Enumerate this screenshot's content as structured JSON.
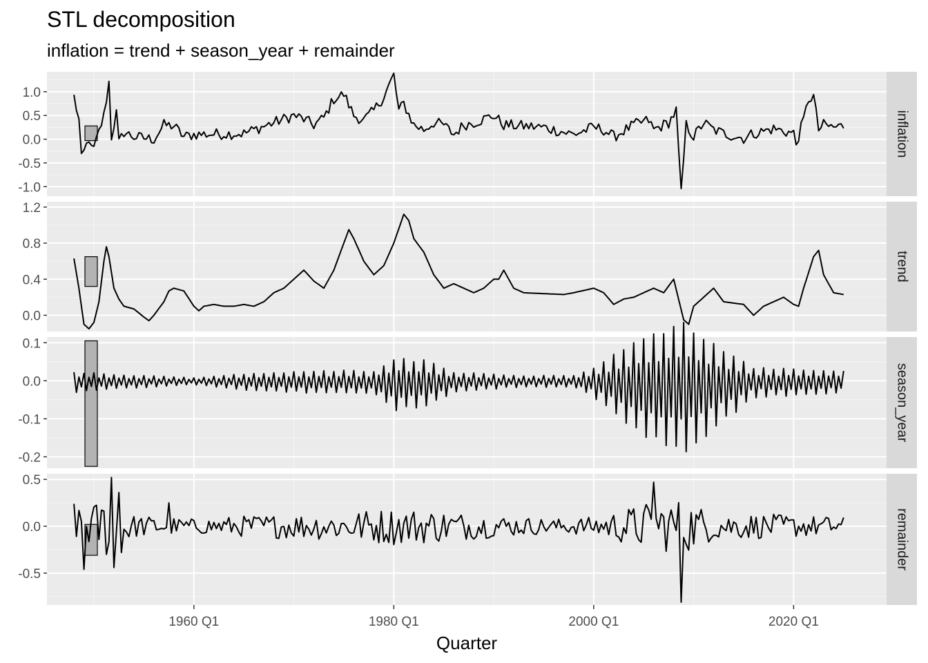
{
  "chart_data": {
    "type": "line",
    "title": "STL decomposition",
    "subtitle": "inflation = trend + season_year + remainder",
    "xlabel": "Quarter",
    "x_ticks": [
      "1960 Q1",
      "1980 Q1",
      "2000 Q1",
      "2020 Q1"
    ],
    "x_range": [
      1945.3,
      2029.3
    ],
    "x_start": 1948.0,
    "x_end": 2025.0,
    "x_step": 0.25,
    "grid": true,
    "panels": [
      {
        "name": "inflation",
        "ylim": [
          -1.2,
          1.42
        ],
        "yticks": [
          -1.0,
          -0.5,
          0.0,
          0.5,
          1.0
        ],
        "ytick_labels": [
          "-1.0",
          "-0.5",
          "0.0",
          "0.5",
          "1.0"
        ],
        "scale_bar": [
          -0.03,
          0.28
        ],
        "anchors": [
          [
            1948.0,
            0.9
          ],
          [
            1948.5,
            0.4
          ],
          [
            1948.75,
            -0.42
          ],
          [
            1949.5,
            0.02
          ],
          [
            1949.75,
            -0.22
          ],
          [
            1950.0,
            -0.2
          ],
          [
            1951.0,
            0.5
          ],
          [
            1951.5,
            1.2
          ],
          [
            1951.75,
            0.05
          ],
          [
            1952.25,
            0.55
          ],
          [
            1952.5,
            -0.08
          ],
          [
            1953.0,
            0.15
          ],
          [
            1954.0,
            0.05
          ],
          [
            1956.0,
            0.0
          ],
          [
            1957.0,
            0.3
          ],
          [
            1958.0,
            0.28
          ],
          [
            1959.0,
            0.05
          ],
          [
            1960.0,
            0.1
          ],
          [
            1965.0,
            0.12
          ],
          [
            1968.0,
            0.35
          ],
          [
            1970.0,
            0.5
          ],
          [
            1971.0,
            0.42
          ],
          [
            1972.0,
            0.3
          ],
          [
            1973.0,
            0.45
          ],
          [
            1974.0,
            0.85
          ],
          [
            1975.0,
            0.95
          ],
          [
            1976.0,
            0.5
          ],
          [
            1977.0,
            0.4
          ],
          [
            1978.0,
            0.6
          ],
          [
            1979.0,
            0.9
          ],
          [
            1980.0,
            1.35
          ],
          [
            1980.5,
            0.6
          ],
          [
            1981.0,
            0.75
          ],
          [
            1982.0,
            0.3
          ],
          [
            1983.0,
            0.2
          ],
          [
            1984.0,
            0.35
          ],
          [
            1985.0,
            0.3
          ],
          [
            1986.0,
            0.1
          ],
          [
            1987.0,
            0.3
          ],
          [
            1988.0,
            0.35
          ],
          [
            1990.0,
            0.5
          ],
          [
            1991.0,
            0.3
          ],
          [
            1995.0,
            0.25
          ],
          [
            1998.0,
            0.1
          ],
          [
            2000.0,
            0.25
          ],
          [
            2001.0,
            0.2
          ],
          [
            2002.0,
            0.05
          ],
          [
            2004.0,
            0.3
          ],
          [
            2005.5,
            0.4
          ],
          [
            2006.0,
            0.2
          ],
          [
            2007.5,
            0.35
          ],
          [
            2008.25,
            0.6
          ],
          [
            2008.75,
            -1.15
          ],
          [
            2009.25,
            0.3
          ],
          [
            2010.0,
            0.05
          ],
          [
            2011.0,
            0.35
          ],
          [
            2012.0,
            0.2
          ],
          [
            2013.0,
            0.12
          ],
          [
            2015.0,
            0.02
          ],
          [
            2016.0,
            0.12
          ],
          [
            2018.0,
            0.22
          ],
          [
            2020.0,
            0.12
          ],
          [
            2020.25,
            -0.1
          ],
          [
            2021.0,
            0.4
          ],
          [
            2021.5,
            0.85
          ],
          [
            2022.0,
            0.9
          ],
          [
            2022.5,
            0.2
          ],
          [
            2023.0,
            0.3
          ],
          [
            2024.0,
            0.25
          ],
          [
            2025.0,
            0.28
          ]
        ],
        "amplitude": 0.12,
        "ring": false
      },
      {
        "name": "trend",
        "ylim": [
          -0.18,
          1.26
        ],
        "yticks": [
          0.0,
          0.4,
          0.8,
          1.2
        ],
        "ytick_labels": [
          "0.0",
          "0.4",
          "0.8",
          "1.2"
        ],
        "scale_bar": [
          0.32,
          0.65
        ],
        "anchors": [
          [
            1948.0,
            0.63
          ],
          [
            1948.5,
            0.3
          ],
          [
            1949.0,
            -0.1
          ],
          [
            1949.5,
            -0.15
          ],
          [
            1950.0,
            -0.08
          ],
          [
            1950.5,
            0.15
          ],
          [
            1951.0,
            0.6
          ],
          [
            1951.25,
            0.76
          ],
          [
            1951.5,
            0.65
          ],
          [
            1952.0,
            0.3
          ],
          [
            1952.5,
            0.18
          ],
          [
            1953.0,
            0.1
          ],
          [
            1954.0,
            0.07
          ],
          [
            1955.0,
            -0.02
          ],
          [
            1955.5,
            -0.06
          ],
          [
            1956.0,
            0.0
          ],
          [
            1957.0,
            0.15
          ],
          [
            1957.5,
            0.27
          ],
          [
            1958.0,
            0.3
          ],
          [
            1959.0,
            0.27
          ],
          [
            1960.0,
            0.1
          ],
          [
            1960.5,
            0.05
          ],
          [
            1961.0,
            0.1
          ],
          [
            1962.0,
            0.12
          ],
          [
            1963.0,
            0.1
          ],
          [
            1964.0,
            0.1
          ],
          [
            1965.0,
            0.12
          ],
          [
            1966.0,
            0.1
          ],
          [
            1967.0,
            0.15
          ],
          [
            1968.0,
            0.25
          ],
          [
            1969.0,
            0.3
          ],
          [
            1970.0,
            0.4
          ],
          [
            1971.0,
            0.5
          ],
          [
            1972.0,
            0.38
          ],
          [
            1973.0,
            0.3
          ],
          [
            1974.0,
            0.5
          ],
          [
            1975.0,
            0.8
          ],
          [
            1975.5,
            0.95
          ],
          [
            1976.0,
            0.85
          ],
          [
            1977.0,
            0.6
          ],
          [
            1978.0,
            0.45
          ],
          [
            1979.0,
            0.55
          ],
          [
            1980.0,
            0.8
          ],
          [
            1981.0,
            1.12
          ],
          [
            1981.5,
            1.05
          ],
          [
            1982.0,
            0.85
          ],
          [
            1983.0,
            0.7
          ],
          [
            1984.0,
            0.45
          ],
          [
            1985.0,
            0.3
          ],
          [
            1986.0,
            0.35
          ],
          [
            1987.0,
            0.3
          ],
          [
            1988.0,
            0.25
          ],
          [
            1989.0,
            0.3
          ],
          [
            1990.0,
            0.4
          ],
          [
            1990.5,
            0.4
          ],
          [
            1991.0,
            0.5
          ],
          [
            1992.0,
            0.3
          ],
          [
            1993.0,
            0.25
          ],
          [
            1995.0,
            0.24
          ],
          [
            1997.0,
            0.23
          ],
          [
            1998.0,
            0.25
          ],
          [
            2000.0,
            0.3
          ],
          [
            2001.0,
            0.25
          ],
          [
            2002.0,
            0.12
          ],
          [
            2003.0,
            0.18
          ],
          [
            2004.0,
            0.2
          ],
          [
            2006.0,
            0.3
          ],
          [
            2007.0,
            0.25
          ],
          [
            2008.0,
            0.4
          ],
          [
            2009.0,
            -0.05
          ],
          [
            2009.5,
            -0.1
          ],
          [
            2010.0,
            0.1
          ],
          [
            2011.0,
            0.2
          ],
          [
            2012.0,
            0.3
          ],
          [
            2013.0,
            0.15
          ],
          [
            2015.0,
            0.12
          ],
          [
            2016.0,
            0.0
          ],
          [
            2017.0,
            0.1
          ],
          [
            2018.0,
            0.15
          ],
          [
            2019.0,
            0.2
          ],
          [
            2020.0,
            0.12
          ],
          [
            2020.5,
            0.1
          ],
          [
            2021.0,
            0.3
          ],
          [
            2022.0,
            0.65
          ],
          [
            2022.5,
            0.72
          ],
          [
            2023.0,
            0.45
          ],
          [
            2024.0,
            0.25
          ],
          [
            2025.0,
            0.23
          ]
        ],
        "amplitude": 0.0,
        "ring": false
      },
      {
        "name": "season_year",
        "ylim": [
          -0.23,
          0.115
        ],
        "yticks": [
          -0.2,
          -0.1,
          0.0,
          0.1
        ],
        "ytick_labels": [
          "-0.2",
          "-0.1",
          "0.0",
          "0.1"
        ],
        "scale_bar": [
          -0.225,
          0.105
        ],
        "pattern": [
          0.7,
          -0.9,
          0.3,
          -0.5
        ],
        "envelope": [
          [
            1948.0,
            0.035
          ],
          [
            1952.0,
            0.025
          ],
          [
            1960.0,
            0.012
          ],
          [
            1966.0,
            0.03
          ],
          [
            1974.0,
            0.04
          ],
          [
            1978.0,
            0.04
          ],
          [
            1980.0,
            0.09
          ],
          [
            1983.0,
            0.08
          ],
          [
            1986.0,
            0.035
          ],
          [
            1992.0,
            0.02
          ],
          [
            1998.0,
            0.02
          ],
          [
            2000.0,
            0.05
          ],
          [
            2004.0,
            0.15
          ],
          [
            2007.0,
            0.2
          ],
          [
            2009.0,
            0.22
          ],
          [
            2012.0,
            0.15
          ],
          [
            2016.0,
            0.05
          ],
          [
            2025.0,
            0.04
          ]
        ],
        "ring": true
      },
      {
        "name": "remainder",
        "ylim": [
          -0.84,
          0.56
        ],
        "yticks": [
          -0.5,
          0.0,
          0.5
        ],
        "ytick_labels": [
          "-0.5",
          "0.0",
          "0.5"
        ],
        "scale_bar": [
          -0.31,
          0.02
        ],
        "envelope": [
          [
            1948.0,
            0.15
          ],
          [
            1950.0,
            0.25
          ],
          [
            1952.0,
            0.4
          ],
          [
            1954.0,
            0.12
          ],
          [
            1960.0,
            0.08
          ],
          [
            1966.0,
            0.12
          ],
          [
            1974.0,
            0.15
          ],
          [
            1980.0,
            0.2
          ],
          [
            1984.0,
            0.18
          ],
          [
            1990.0,
            0.12
          ],
          [
            1996.0,
            0.08
          ],
          [
            2000.0,
            0.1
          ],
          [
            2005.0,
            0.25
          ],
          [
            2009.0,
            0.3
          ],
          [
            2012.0,
            0.15
          ],
          [
            2020.0,
            0.12
          ],
          [
            2025.0,
            0.1
          ]
        ],
        "spikes": [
          [
            1948.0,
            0.24
          ],
          [
            1949.0,
            -0.46
          ],
          [
            1951.75,
            0.52
          ],
          [
            1952.0,
            -0.44
          ],
          [
            1952.5,
            0.36
          ],
          [
            1952.75,
            -0.28
          ],
          [
            1957.5,
            0.25
          ],
          [
            2006.0,
            0.47
          ],
          [
            2008.75,
            -0.81
          ]
        ],
        "ring": false
      }
    ]
  }
}
